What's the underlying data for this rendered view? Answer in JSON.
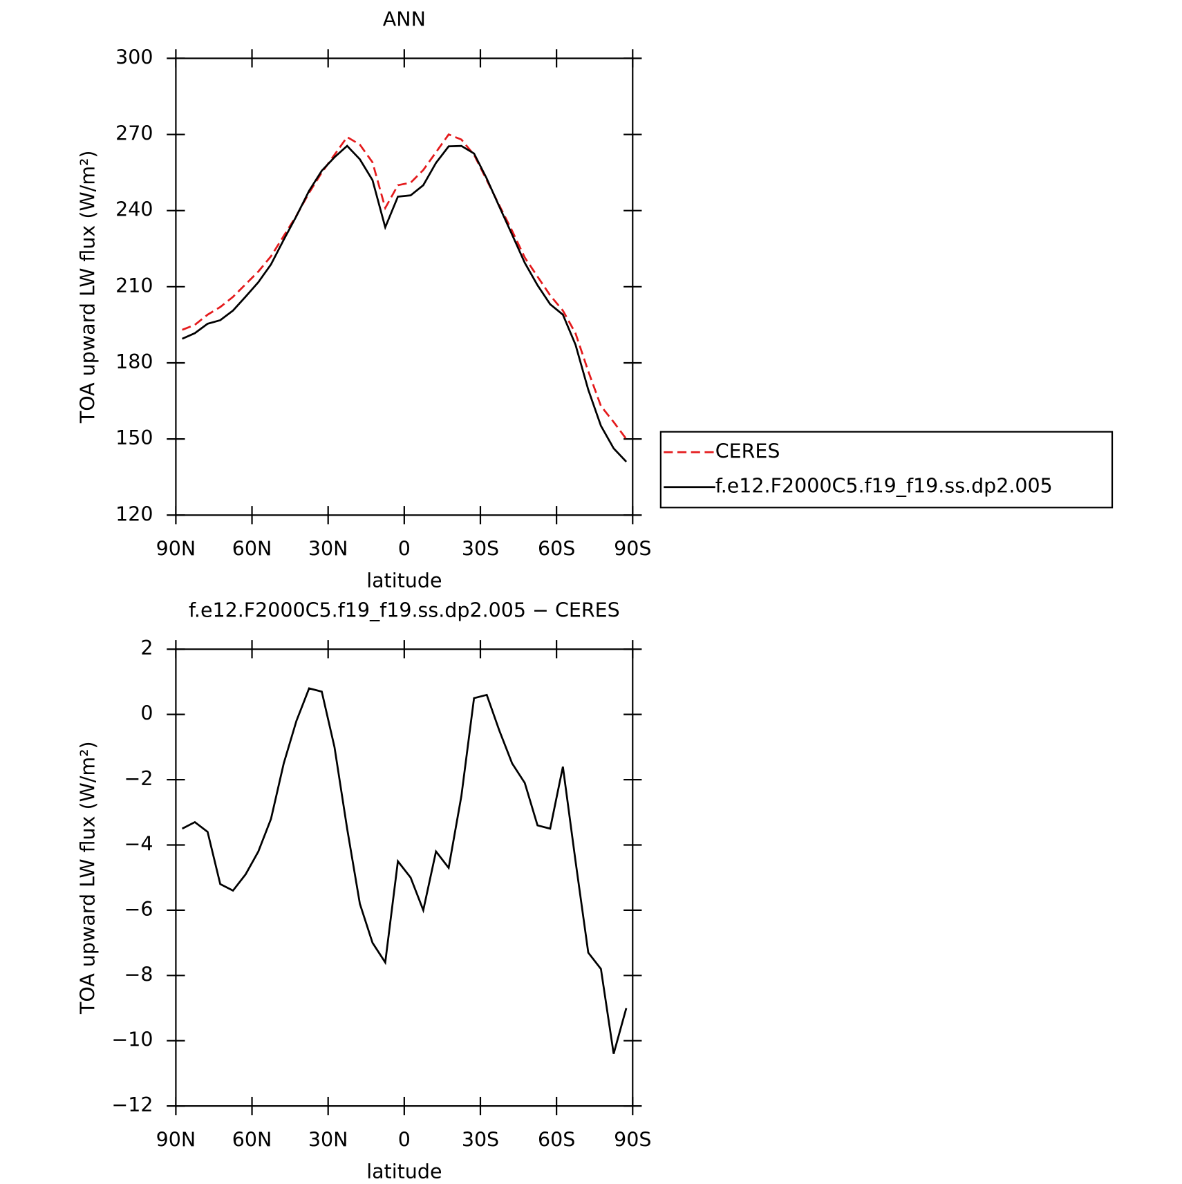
{
  "chart_data": [
    {
      "type": "line",
      "title": "ANN",
      "xlabel": "latitude",
      "ylabel": "TOA upward LW flux (W/m²)",
      "x": [
        87.5,
        82.5,
        77.5,
        72.5,
        67.5,
        62.5,
        57.5,
        52.5,
        47.5,
        42.5,
        37.5,
        32.5,
        27.5,
        22.5,
        17.5,
        12.5,
        7.5,
        2.5,
        -2.5,
        -7.5,
        -12.5,
        -17.5,
        -22.5,
        -27.5,
        -32.5,
        -37.5,
        -42.5,
        -47.5,
        -52.5,
        -57.5,
        -62.5,
        -67.5,
        -72.5,
        -77.5,
        -82.5,
        -87.5
      ],
      "series": [
        {
          "name": "CERES",
          "color": "#e41a1c",
          "dash": true,
          "values": [
            193,
            195,
            199,
            202,
            206,
            211,
            216,
            222,
            230,
            238,
            247,
            255,
            262,
            269,
            266,
            259,
            241,
            250,
            251,
            256,
            263,
            270,
            268,
            262,
            252,
            242,
            232,
            221.5,
            214,
            206.6,
            200.6,
            191.6,
            176.7,
            163,
            156.7,
            150
          ]
        },
        {
          "name": "f.e12.F2000C5.f19_f19.ss.dp2.005",
          "color": "#000000",
          "dash": false,
          "values": [
            189.5,
            191.7,
            195.4,
            196.8,
            200.6,
            206.1,
            211.8,
            218.8,
            228.5,
            237.8,
            247.8,
            255.7,
            261,
            265.5,
            260.2,
            252,
            233.4,
            245.5,
            246,
            250,
            258.8,
            265.3,
            265.5,
            262.5,
            252.6,
            241.5,
            230.5,
            219.4,
            210.6,
            203.1,
            199,
            187.1,
            169.4,
            155.2,
            146.3,
            141
          ]
        }
      ],
      "xlim": [
        90,
        -90
      ],
      "xticks": [
        {
          "value": 90,
          "label": "90N"
        },
        {
          "value": 60,
          "label": "60N"
        },
        {
          "value": 30,
          "label": "30N"
        },
        0,
        {
          "value": -30,
          "label": "30S"
        },
        {
          "value": -60,
          "label": "60S"
        },
        {
          "value": -90,
          "label": "90S"
        }
      ],
      "ylim": [
        120,
        300
      ],
      "yticks": [
        120,
        150,
        180,
        210,
        240,
        270,
        300
      ],
      "legend": "right"
    },
    {
      "type": "line",
      "title": "f.e12.F2000C5.f19_f19.ss.dp2.005 − CERES",
      "xlabel": "latitude",
      "ylabel": "TOA upward LW flux (W/m²)",
      "x": [
        87.5,
        82.5,
        77.5,
        72.5,
        67.5,
        62.5,
        57.5,
        52.5,
        47.5,
        42.5,
        37.5,
        32.5,
        27.5,
        22.5,
        17.5,
        12.5,
        7.5,
        2.5,
        -2.5,
        -7.5,
        -12.5,
        -17.5,
        -22.5,
        -27.5,
        -32.5,
        -37.5,
        -42.5,
        -47.5,
        -52.5,
        -57.5,
        -62.5,
        -67.5,
        -72.5,
        -77.5,
        -82.5,
        -87.5
      ],
      "series": [
        {
          "color": "#000000",
          "dash": false,
          "values": [
            -3.5,
            -3.3,
            -3.6,
            -5.2,
            -5.4,
            -4.9,
            -4.2,
            -3.2,
            -1.5,
            -0.2,
            0.8,
            0.7,
            -1.0,
            -3.5,
            -5.8,
            -7.0,
            -7.6,
            -4.5,
            -5.0,
            -6.0,
            -4.2,
            -4.7,
            -2.5,
            0.5,
            0.6,
            -0.5,
            -1.5,
            -2.1,
            -3.4,
            -3.5,
            -1.6,
            -4.5,
            -7.3,
            -7.8,
            -10.4,
            -9.0
          ]
        }
      ],
      "xlim": [
        90,
        -90
      ],
      "xticks": [
        {
          "value": 90,
          "label": "90N"
        },
        {
          "value": 60,
          "label": "60N"
        },
        {
          "value": 30,
          "label": "30N"
        },
        0,
        {
          "value": -30,
          "label": "30S"
        },
        {
          "value": -60,
          "label": "60S"
        },
        {
          "value": -90,
          "label": "90S"
        }
      ],
      "ylim": [
        -12,
        2
      ],
      "yticks": [
        {
          "value": -12,
          "label": "−12"
        },
        {
          "value": -10,
          "label": "−10"
        },
        {
          "value": -8,
          "label": "−8"
        },
        {
          "value": -6,
          "label": "−6"
        },
        {
          "value": -4,
          "label": "−4"
        },
        {
          "value": -2,
          "label": "−2"
        },
        0,
        2
      ]
    }
  ]
}
